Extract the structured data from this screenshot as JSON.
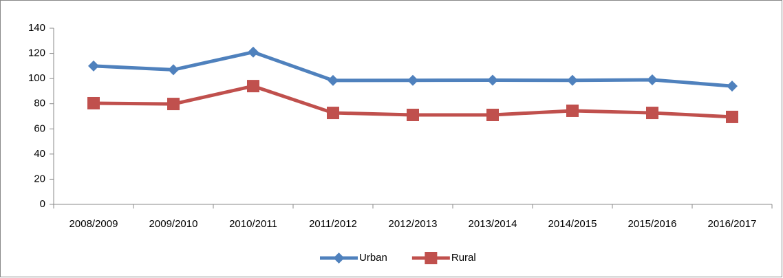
{
  "chart_data": {
    "type": "line",
    "categories": [
      "2008/2009",
      "2009/2010",
      "2010/2011",
      "2011/2012",
      "2012/2013",
      "2013/2014",
      "2014/2015",
      "2015/2016",
      "2016/2017"
    ],
    "series": [
      {
        "name": "Urban",
        "color": "#4f81bd",
        "marker": "diamond",
        "values": [
          110,
          107,
          121,
          98.5,
          98.6,
          98.7,
          98.6,
          99,
          94
        ]
      },
      {
        "name": "Rural",
        "color": "#c0504d",
        "marker": "square",
        "values": [
          80.4,
          79.8,
          94,
          72.7,
          71.1,
          71.1,
          74.4,
          72.7,
          69.5
        ]
      }
    ],
    "ylim": [
      0,
      140
    ],
    "yticks": [
      0,
      20,
      40,
      60,
      80,
      100,
      120,
      140
    ],
    "grid": false,
    "legend": "bottom"
  }
}
